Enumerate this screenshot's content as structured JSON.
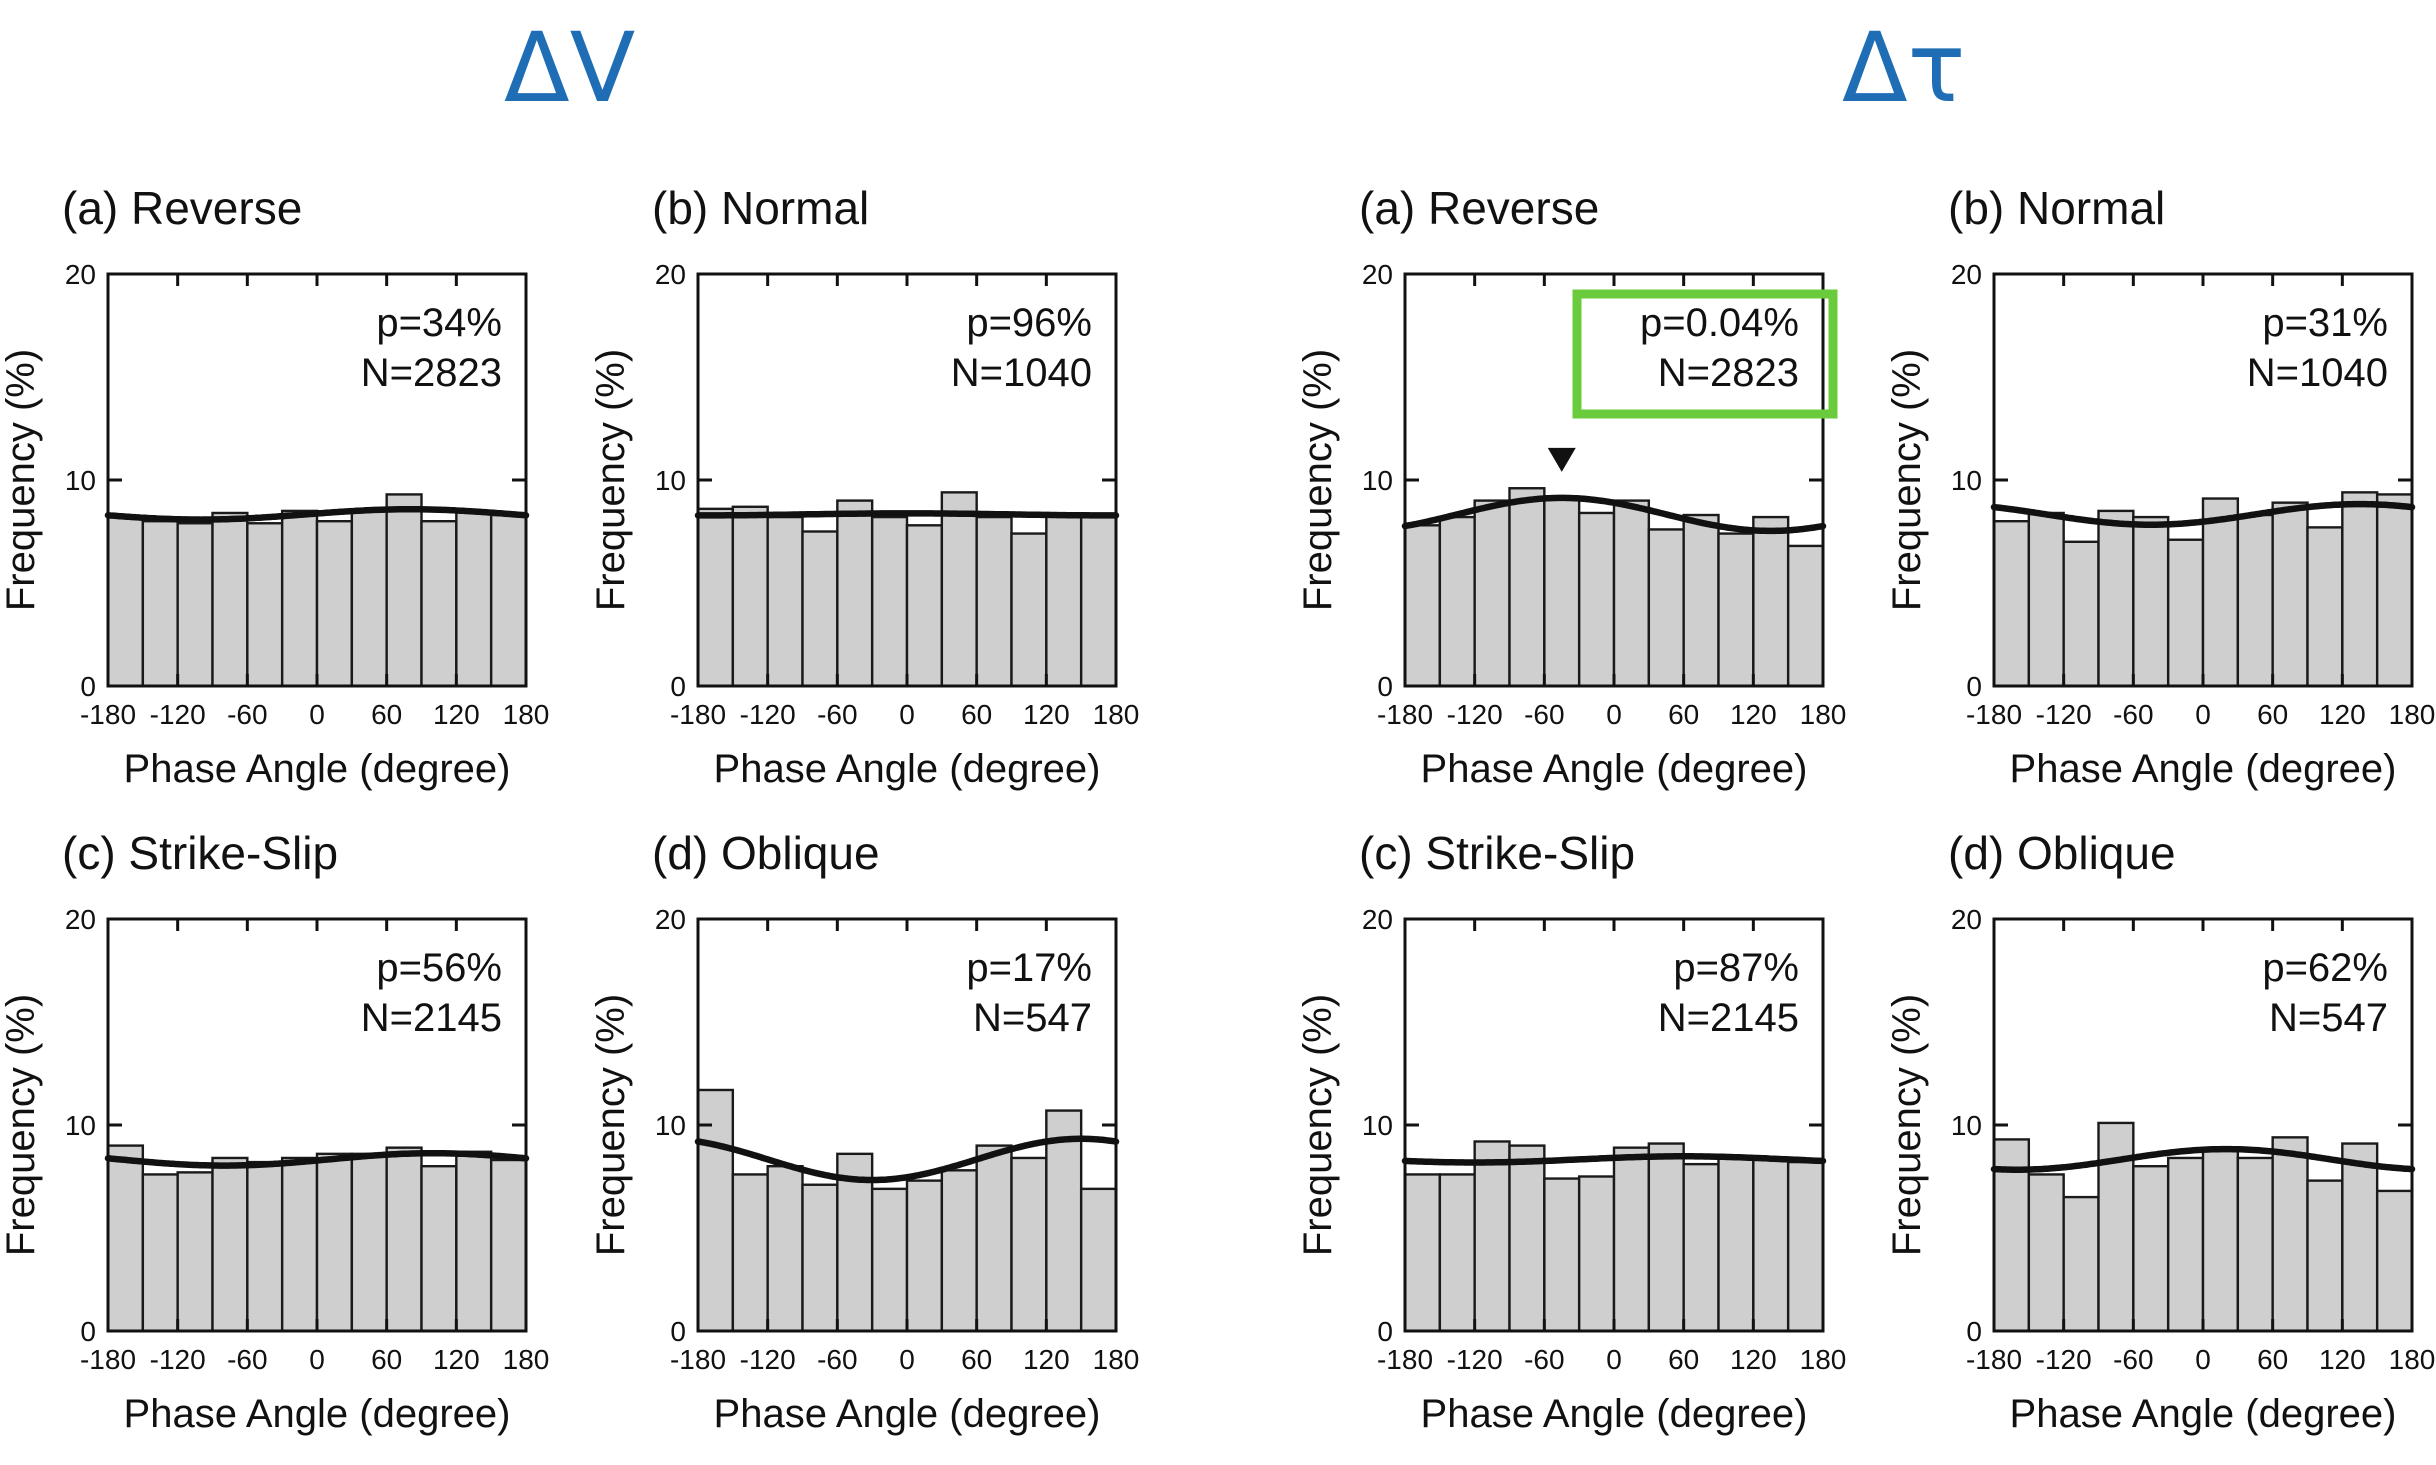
{
  "group_titles": {
    "dv": "ΔV",
    "dt": "Δτ"
  },
  "colors": {
    "title_blue": "#1f6eb5",
    "bar_fill": "#cfcfcf",
    "bar_edge": "#1a1a1a",
    "curve": "#111111",
    "highlight_green": "#6acc3d",
    "triangle": "#111111"
  },
  "chart_data": [
    {
      "group": "ΔV",
      "panel": "(a) Reverse",
      "type": "bar",
      "p": "p=34%",
      "n": "N=2823",
      "xlabel": "Phase Angle (degree)",
      "ylabel": "Frequency (%)",
      "xlim": [
        -180,
        180
      ],
      "ylim": [
        0,
        20
      ],
      "xticks": [
        -180,
        -120,
        -60,
        0,
        60,
        120,
        180
      ],
      "yticks": [
        0,
        10,
        20
      ],
      "values": [
        8.2,
        8.0,
        7.9,
        8.4,
        7.9,
        8.5,
        8.0,
        8.5,
        9.3,
        8.0,
        8.5,
        8.3
      ],
      "curve": {
        "mean": 8.33,
        "amp": 0.25,
        "peak_deg": 80
      },
      "highlight": false,
      "marker_deg": null
    },
    {
      "group": "ΔV",
      "panel": "(b) Normal",
      "type": "bar",
      "p": "p=96%",
      "n": "N=1040",
      "xlabel": "Phase Angle (degree)",
      "ylabel": "Frequency (%)",
      "xlim": [
        -180,
        180
      ],
      "ylim": [
        0,
        20
      ],
      "xticks": [
        -180,
        -120,
        -60,
        0,
        60,
        120,
        180
      ],
      "yticks": [
        0,
        10,
        20
      ],
      "values": [
        8.6,
        8.7,
        8.2,
        7.5,
        9.0,
        8.2,
        7.8,
        9.4,
        8.2,
        7.4,
        8.3,
        8.3
      ],
      "curve": {
        "mean": 8.33,
        "amp": 0.05,
        "peak_deg": 0
      },
      "highlight": false,
      "marker_deg": null
    },
    {
      "group": "ΔV",
      "panel": "(c) Strike-Slip",
      "type": "bar",
      "p": "p=56%",
      "n": "N=2145",
      "xlabel": "Phase Angle (degree)",
      "ylabel": "Frequency (%)",
      "xlim": [
        -180,
        180
      ],
      "ylim": [
        0,
        20
      ],
      "xticks": [
        -180,
        -120,
        -60,
        0,
        60,
        120,
        180
      ],
      "yticks": [
        0,
        10,
        20
      ],
      "values": [
        9.0,
        7.6,
        7.7,
        8.4,
        8.2,
        8.4,
        8.6,
        8.6,
        8.9,
        8.0,
        8.7,
        8.3
      ],
      "curve": {
        "mean": 8.33,
        "amp": 0.3,
        "peak_deg": 100
      },
      "highlight": false,
      "marker_deg": null
    },
    {
      "group": "ΔV",
      "panel": "(d) Oblique",
      "type": "bar",
      "p": "p=17%",
      "n": "N=547",
      "xlabel": "Phase Angle (degree)",
      "ylabel": "Frequency (%)",
      "xlim": [
        -180,
        180
      ],
      "ylim": [
        0,
        20
      ],
      "xticks": [
        -180,
        -120,
        -60,
        0,
        60,
        120,
        180
      ],
      "yticks": [
        0,
        10,
        20
      ],
      "values": [
        11.7,
        7.6,
        8.0,
        7.1,
        8.6,
        6.9,
        7.3,
        7.8,
        9.0,
        8.4,
        10.7,
        6.9
      ],
      "curve": {
        "mean": 8.33,
        "amp": 1.0,
        "peak_deg": 150
      },
      "highlight": false,
      "marker_deg": null
    },
    {
      "group": "Δτ",
      "panel": "(a) Reverse",
      "type": "bar",
      "p": "p=0.04%",
      "n": "N=2823",
      "xlabel": "Phase Angle (degree)",
      "ylabel": "Frequency (%)",
      "xlim": [
        -180,
        180
      ],
      "ylim": [
        0,
        20
      ],
      "xticks": [
        -180,
        -120,
        -60,
        0,
        60,
        120,
        180
      ],
      "yticks": [
        0,
        10,
        20
      ],
      "values": [
        7.8,
        8.2,
        9.0,
        9.6,
        9.2,
        8.4,
        9.0,
        7.6,
        8.3,
        7.4,
        8.2,
        6.8
      ],
      "curve": {
        "mean": 8.33,
        "amp": 0.8,
        "peak_deg": -45
      },
      "highlight": true,
      "marker_deg": -45
    },
    {
      "group": "Δτ",
      "panel": "(b) Normal",
      "type": "bar",
      "p": "p=31%",
      "n": "N=1040",
      "xlabel": "Phase Angle (degree)",
      "ylabel": "Frequency (%)",
      "xlim": [
        -180,
        180
      ],
      "ylim": [
        0,
        20
      ],
      "xticks": [
        -180,
        -120,
        -60,
        0,
        60,
        120,
        180
      ],
      "yticks": [
        0,
        10,
        20
      ],
      "values": [
        8.0,
        8.4,
        7.0,
        8.5,
        8.2,
        7.1,
        9.1,
        8.3,
        8.9,
        7.7,
        9.4,
        9.3
      ],
      "curve": {
        "mean": 8.33,
        "amp": 0.5,
        "peak_deg": 135
      },
      "highlight": false,
      "marker_deg": null
    },
    {
      "group": "Δτ",
      "panel": "(c) Strike-Slip",
      "type": "bar",
      "p": "p=87%",
      "n": "N=2145",
      "xlabel": "Phase Angle (degree)",
      "ylabel": "Frequency (%)",
      "xlim": [
        -180,
        180
      ],
      "ylim": [
        0,
        20
      ],
      "xticks": [
        -180,
        -120,
        -60,
        0,
        60,
        120,
        180
      ],
      "yticks": [
        0,
        10,
        20
      ],
      "values": [
        7.6,
        7.6,
        9.2,
        9.0,
        7.4,
        7.5,
        8.9,
        9.1,
        8.1,
        8.4,
        8.4,
        8.2
      ],
      "curve": {
        "mean": 8.33,
        "amp": 0.15,
        "peak_deg": 60
      },
      "highlight": false,
      "marker_deg": null
    },
    {
      "group": "Δτ",
      "panel": "(d) Oblique",
      "type": "bar",
      "p": "p=62%",
      "n": "N=547",
      "xlabel": "Phase Angle (degree)",
      "ylabel": "Frequency (%)",
      "xlim": [
        -180,
        180
      ],
      "ylim": [
        0,
        20
      ],
      "xticks": [
        -180,
        -120,
        -60,
        0,
        60,
        120,
        180
      ],
      "yticks": [
        0,
        10,
        20
      ],
      "values": [
        9.3,
        7.6,
        6.5,
        10.1,
        8.0,
        8.4,
        8.8,
        8.4,
        9.4,
        7.3,
        9.1,
        6.8
      ],
      "curve": {
        "mean": 8.33,
        "amp": 0.5,
        "peak_deg": 20
      },
      "highlight": false,
      "marker_deg": null
    }
  ]
}
